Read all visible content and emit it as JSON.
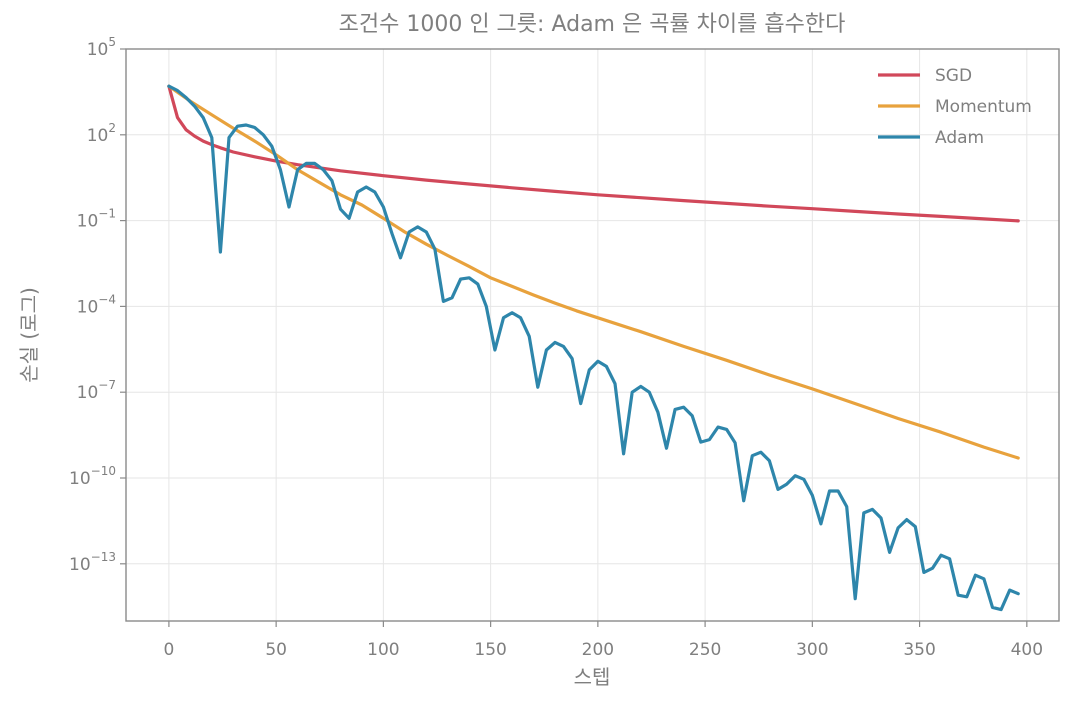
{
  "chart_data": {
    "type": "line",
    "title": "조건수 1000 인 그릇: Adam 은 곡률 차이를 흡수한다",
    "xlabel": "스텝",
    "ylabel": "손실 (로그)",
    "xlim": [
      -20,
      415
    ],
    "ylim": [
      1e-15,
      100000
    ],
    "yscale": "log",
    "grid": true,
    "legend_position": "top-right",
    "x_ticks": [
      "0",
      "50",
      "100",
      "150",
      "200",
      "250",
      "300",
      "350",
      "400"
    ],
    "x_tick_values": [
      0,
      50,
      100,
      150,
      200,
      250,
      300,
      350,
      400
    ],
    "y_tick_exponents": [
      5,
      2,
      -1,
      -4,
      -7,
      -10,
      -13
    ],
    "series": [
      {
        "name": "SGD",
        "color": "#d1485a",
        "x": [
          0,
          4,
          8,
          12,
          16,
          20,
          24,
          30,
          40,
          50,
          60,
          80,
          100,
          120,
          140,
          160,
          180,
          200,
          220,
          240,
          260,
          280,
          300,
          320,
          340,
          360,
          380,
          396
        ],
        "y": [
          5000,
          400,
          150,
          90,
          60,
          45,
          35,
          25,
          17,
          12,
          9,
          5.5,
          3.7,
          2.6,
          1.9,
          1.4,
          1.05,
          0.8,
          0.63,
          0.5,
          0.4,
          0.32,
          0.26,
          0.21,
          0.17,
          0.14,
          0.115,
          0.098
        ]
      },
      {
        "name": "Momentum",
        "color": "#e8a23d",
        "x": [
          0,
          10,
          20,
          30,
          40,
          50,
          60,
          70,
          80,
          90,
          100,
          110,
          120,
          130,
          140,
          150,
          160,
          170,
          180,
          190,
          200,
          220,
          240,
          260,
          280,
          300,
          320,
          340,
          360,
          380,
          396
        ],
        "y": [
          5000,
          1500,
          500,
          170,
          60,
          20,
          6,
          2.2,
          0.8,
          0.35,
          0.12,
          0.04,
          0.015,
          0.006,
          0.0025,
          0.001,
          0.0005,
          0.00025,
          0.00013,
          7e-05,
          4e-05,
          1.3e-05,
          4e-06,
          1.3e-06,
          4e-07,
          1.3e-07,
          4e-08,
          1.2e-08,
          4e-09,
          1.2e-09,
          5e-10
        ]
      },
      {
        "name": "Adam",
        "color": "#2e86ab",
        "x": [
          0,
          4,
          8,
          12,
          16,
          20,
          24,
          28,
          32,
          36,
          40,
          44,
          48,
          52,
          56,
          60,
          64,
          68,
          72,
          76,
          80,
          84,
          88,
          92,
          96,
          100,
          104,
          108,
          112,
          116,
          120,
          124,
          128,
          132,
          136,
          140,
          144,
          148,
          152,
          156,
          160,
          164,
          168,
          172,
          176,
          180,
          184,
          188,
          192,
          196,
          200,
          204,
          208,
          212,
          216,
          220,
          224,
          228,
          232,
          236,
          240,
          244,
          248,
          252,
          256,
          260,
          264,
          268,
          272,
          276,
          280,
          284,
          288,
          292,
          296,
          300,
          304,
          308,
          312,
          316,
          320,
          324,
          328,
          332,
          336,
          340,
          344,
          348,
          352,
          356,
          360,
          364,
          368,
          372,
          376,
          380,
          384,
          388,
          392,
          396
        ],
        "y": [
          5000,
          3500,
          2000,
          1000,
          400,
          80,
          0.008,
          80,
          200,
          220,
          180,
          100,
          40,
          6,
          0.3,
          6,
          10,
          10,
          6,
          2.5,
          0.25,
          0.12,
          1,
          1.5,
          1,
          0.3,
          0.035,
          0.005,
          0.04,
          0.06,
          0.04,
          0.01,
          0.00015,
          0.0002,
          0.0009,
          0.001,
          0.0006,
          0.0001,
          3e-06,
          4e-05,
          6e-05,
          4e-05,
          9e-06,
          1.5e-07,
          3e-06,
          5.5e-06,
          4e-06,
          1.5e-06,
          4e-08,
          6e-07,
          1.2e-06,
          8e-07,
          2e-07,
          7e-10,
          1e-07,
          1.6e-07,
          1e-07,
          2e-08,
          1.1e-09,
          2.5e-08,
          3e-08,
          1.5e-08,
          1.8e-09,
          2.2e-09,
          6e-09,
          5e-09,
          1.7e-09,
          1.6e-11,
          6e-10,
          8e-10,
          4e-10,
          4e-11,
          6e-11,
          1.2e-10,
          9e-11,
          2.5e-11,
          2.5e-12,
          3.5e-11,
          3.5e-11,
          1e-11,
          6e-15,
          6e-12,
          8e-12,
          4e-12,
          2.5e-13,
          1.8e-12,
          3.5e-12,
          2e-12,
          5e-14,
          7e-14,
          2e-13,
          1.5e-13,
          8e-15,
          7e-15,
          4e-14,
          3e-14,
          3e-15,
          2.5e-15,
          1.2e-14,
          9e-15
        ]
      }
    ]
  }
}
